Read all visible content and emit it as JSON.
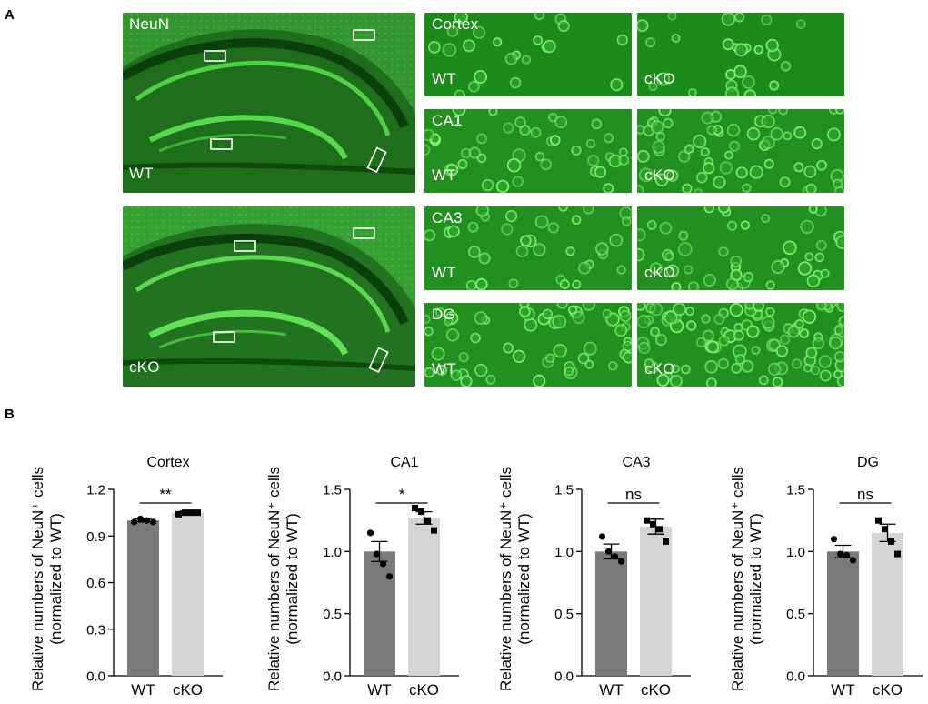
{
  "panel_a": {
    "letter": "A",
    "overview": {
      "stain": "NeuN",
      "wt_label": "WT",
      "cko_label": "cKO"
    },
    "rows": [
      {
        "region": "Cortex",
        "wt": "WT",
        "cko": "cKO"
      },
      {
        "region": "CA1",
        "wt": "WT",
        "cko": "cKO"
      },
      {
        "region": "CA3",
        "wt": "WT",
        "cko": "cKO"
      },
      {
        "region": "DG",
        "wt": "WT",
        "cko": "cKO"
      }
    ],
    "colors": {
      "stain_green": "#3fb53a",
      "dark_green": "#0c4a10"
    }
  },
  "panel_b": {
    "letter": "B"
  },
  "chart_data": [
    {
      "type": "bar",
      "title": "Cortex",
      "ylabel": "Relative numbers of NeuN⁺ cells (normalized to WT)",
      "categories": [
        "WT",
        "cKO"
      ],
      "values": [
        1.0,
        1.05
      ],
      "errors": [
        0.01,
        0.01
      ],
      "points": [
        [
          0.99,
          1.01,
          1.0,
          0.99
        ],
        [
          1.04,
          1.05,
          1.05,
          1.05
        ]
      ],
      "ylim": [
        0,
        1.2
      ],
      "yticks": [
        "0.0",
        "0.3",
        "0.6",
        "0.9",
        "1.2"
      ],
      "significance": "**",
      "colors": [
        "#7a7a7a",
        "#d4d4d4"
      ]
    },
    {
      "type": "bar",
      "title": "CA1",
      "ylabel": "Relative numbers of NeuN⁺ cells (normalized to WT)",
      "categories": [
        "WT",
        "cKO"
      ],
      "values": [
        1.0,
        1.27
      ],
      "errors": [
        0.08,
        0.05
      ],
      "points": [
        [
          1.15,
          0.98,
          0.9,
          0.8
        ],
        [
          1.35,
          1.32,
          1.25,
          1.17
        ]
      ],
      "ylim": [
        0,
        1.5
      ],
      "yticks": [
        "0.0",
        "0.5",
        "1.0",
        "1.5"
      ],
      "significance": "*",
      "colors": [
        "#7a7a7a",
        "#d4d4d4"
      ]
    },
    {
      "type": "bar",
      "title": "CA3",
      "ylabel": "Relative numbers of NeuN⁺ cells (normalized to WT)",
      "categories": [
        "WT",
        "cKO"
      ],
      "values": [
        1.0,
        1.2
      ],
      "errors": [
        0.06,
        0.06
      ],
      "points": [
        [
          1.12,
          1.0,
          0.96,
          0.92
        ],
        [
          1.25,
          1.22,
          1.18,
          1.08
        ]
      ],
      "ylim": [
        0,
        1.5
      ],
      "yticks": [
        "0.0",
        "0.5",
        "1.0",
        "1.5"
      ],
      "significance": "ns",
      "colors": [
        "#7a7a7a",
        "#d4d4d4"
      ]
    },
    {
      "type": "bar",
      "title": "DG",
      "ylabel": "Relative numbers of NeuN⁺ cells (normalized to WT)",
      "categories": [
        "WT",
        "cKO"
      ],
      "values": [
        1.0,
        1.15
      ],
      "errors": [
        0.05,
        0.07
      ],
      "points": [
        [
          1.1,
          0.98,
          0.97,
          0.93
        ],
        [
          1.25,
          1.18,
          1.08,
          0.98
        ]
      ],
      "ylim": [
        0,
        1.5
      ],
      "yticks": [
        "0.0",
        "0.5",
        "1.0",
        "1.5"
      ],
      "significance": "ns",
      "colors": [
        "#7a7a7a",
        "#d4d4d4"
      ]
    }
  ]
}
